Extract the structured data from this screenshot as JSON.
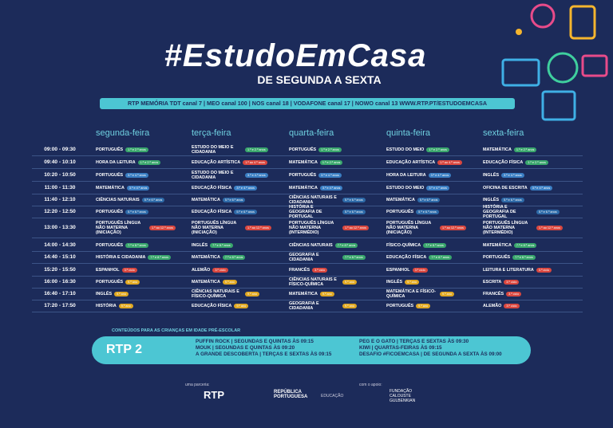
{
  "header": {
    "title": "#EstudoEmCasa",
    "subtitle": "DE SEGUNDA A SEXTA",
    "channels": "RTP MEMÓRIA   TDT canal 7 | MEO canal 100 | NOS canal 18 | VODAFONE canal 17 | NOWO canal 13     WWW.RTP.PT/ESTUDOEMCASA"
  },
  "schedule": {
    "days": [
      "segunda-feira",
      "terça-feira",
      "quarta-feira",
      "quinta-feira",
      "sexta-feira"
    ],
    "rows": [
      {
        "time": "09:00 - 09:30",
        "cells": [
          {
            "subject": "PORTUGUÊS",
            "grade": "1.º e 2.º anos",
            "color": "#3aa76d"
          },
          {
            "subject": "ESTUDO DO MEIO E CIDADANIA",
            "grade": "1.º e 2.º anos",
            "color": "#3aa76d"
          },
          {
            "subject": "PORTUGUÊS",
            "grade": "1.º e 2.º anos",
            "color": "#3aa76d"
          },
          {
            "subject": "ESTUDO DO MEIO",
            "grade": "1.º e 2.º anos",
            "color": "#3aa76d"
          },
          {
            "subject": "MATEMÁTICA",
            "grade": "1.º e 2.º anos",
            "color": "#3aa76d"
          }
        ]
      },
      {
        "time": "09:40 - 10:10",
        "cells": [
          {
            "subject": "HORA DA LEITURA",
            "grade": "1.º e 2.º anos",
            "color": "#3aa76d"
          },
          {
            "subject": "EDUCAÇÃO ARTÍSTICA",
            "grade": "1.º ao 4.º anos",
            "color": "#d9473f"
          },
          {
            "subject": "MATEMÁTICA",
            "grade": "1.º e 2.º anos",
            "color": "#3aa76d"
          },
          {
            "subject": "EDUCAÇÃO ARTÍSTICA",
            "grade": "1.º ao 4.º anos",
            "color": "#d9473f"
          },
          {
            "subject": "EDUCAÇÃO FÍSICA",
            "grade": "1.º e 2.º anos",
            "color": "#3aa76d"
          }
        ]
      },
      {
        "time": "10:20 - 10:50",
        "cells": [
          {
            "subject": "PORTUGUÊS",
            "grade": "3.º e 4.º anos",
            "color": "#3b7fc4"
          },
          {
            "subject": "ESTUDO DO MEIO E CIDADANIA",
            "grade": "3.º e 4.º anos",
            "color": "#3b7fc4"
          },
          {
            "subject": "PORTUGUÊS",
            "grade": "3.º e 4.º anos",
            "color": "#3b7fc4"
          },
          {
            "subject": "HORA DA LEITURA",
            "grade": "3.º e 4.º anos",
            "color": "#3b7fc4"
          },
          {
            "subject": "INGLÊS",
            "grade": "3.º e 4.º anos",
            "color": "#3b7fc4"
          }
        ]
      },
      {
        "time": "11:00 - 11:30",
        "cells": [
          {
            "subject": "MATEMÁTICA",
            "grade": "3.º e 4.º anos",
            "color": "#3b7fc4"
          },
          {
            "subject": "EDUCAÇÃO FÍSICA",
            "grade": "3.º e 4.º anos",
            "color": "#3b7fc4"
          },
          {
            "subject": "MATEMÁTICA",
            "grade": "3.º e 4.º anos",
            "color": "#3b7fc4"
          },
          {
            "subject": "ESTUDO DO MEIO",
            "grade": "3.º e 4.º anos",
            "color": "#3b7fc4"
          },
          {
            "subject": "OFICINA DE ESCRITA",
            "grade": "3.º e 4.º anos",
            "color": "#3b7fc4"
          }
        ]
      },
      {
        "time": "11:40 - 12:10",
        "cells": [
          {
            "subject": "CIÊNCIAS NATURAIS",
            "grade": "5.º e 6.º anos",
            "color": "#2e6aa8"
          },
          {
            "subject": "MATEMÁTICA",
            "grade": "5.º e 6.º anos",
            "color": "#2e6aa8"
          },
          {
            "subject": "CIÊNCIAS NATURAIS E CIDADANIA",
            "grade": "5.º e 6.º anos",
            "color": "#2e6aa8"
          },
          {
            "subject": "MATEMÁTICA",
            "grade": "5.º e 6.º anos",
            "color": "#2e6aa8"
          },
          {
            "subject": "INGLÊS",
            "grade": "5.º e 6.º anos",
            "color": "#2e6aa8"
          }
        ]
      },
      {
        "time": "12:20 - 12:50",
        "cells": [
          {
            "subject": "PORTUGUÊS",
            "grade": "5.º e 6.º anos",
            "color": "#2e6aa8"
          },
          {
            "subject": "EDUCAÇÃO FÍSICA",
            "grade": "5.º e 6.º anos",
            "color": "#2e6aa8"
          },
          {
            "subject": "HISTÓRIA E GEOGRAFIA DE PORTUGAL",
            "grade": "5.º e 6.º anos",
            "color": "#2e6aa8"
          },
          {
            "subject": "PORTUGUÊS",
            "grade": "5.º e 6.º anos",
            "color": "#2e6aa8"
          },
          {
            "subject": "HISTÓRIA E GEOGRAFIA DE PORTUGAL",
            "grade": "5.º e 6.º anos",
            "color": "#2e6aa8"
          }
        ]
      },
      {
        "time": "13:00 - 13:30",
        "cells": [
          {
            "subject": "PORTUGUÊS LÍNGUA NÃO MATERNA (INICIAÇÃO)",
            "grade": "1.º ao 12.º anos",
            "color": "#d9473f"
          },
          {
            "subject": "PORTUGUÊS LÍNGUA NÃO MATERNA (INICIAÇÃO)",
            "grade": "1.º ao 12.º anos",
            "color": "#d9473f"
          },
          {
            "subject": "PORTUGUÊS LÍNGUA NÃO MATERNA (INTERMÉDIO)",
            "grade": "1.º ao 12.º anos",
            "color": "#d9473f"
          },
          {
            "subject": "PORTUGUÊS LÍNGUA NÃO MATERNA (INICIAÇÃO)",
            "grade": "1.º ao 12.º anos",
            "color": "#d9473f"
          },
          {
            "subject": "PORTUGUÊS LÍNGUA NÃO MATERNA (INTERMÉDIO)",
            "grade": "1.º ao 12.º anos",
            "color": "#d9473f"
          }
        ]
      },
      {
        "time": "14:00 - 14:30",
        "cells": [
          {
            "subject": "PORTUGUÊS",
            "grade": "7.º e 8.º anos",
            "color": "#3aa76d"
          },
          {
            "subject": "INGLÊS",
            "grade": "7.º e 8.º anos",
            "color": "#3aa76d"
          },
          {
            "subject": "CIÊNCIAS NATURAIS",
            "grade": "7.º e 8.º anos",
            "color": "#3aa76d"
          },
          {
            "subject": "FÍSICO-QUÍMICA",
            "grade": "7.º e 8.º anos",
            "color": "#3aa76d"
          },
          {
            "subject": "MATEMÁTICA",
            "grade": "7.º e 8.º anos",
            "color": "#3aa76d"
          }
        ]
      },
      {
        "time": "14:40 - 15:10",
        "cells": [
          {
            "subject": "HISTÓRIA E CIDADANIA",
            "grade": "7.º e 8.º anos",
            "color": "#3aa76d"
          },
          {
            "subject": "MATEMÁTICA",
            "grade": "7.º e 8.º anos",
            "color": "#3aa76d"
          },
          {
            "subject": "GEOGRAFIA E CIDADANIA",
            "grade": "7.º e 8.º anos",
            "color": "#3aa76d"
          },
          {
            "subject": "EDUCAÇÃO FÍSICA",
            "grade": "7.º e 8.º anos",
            "color": "#3aa76d"
          },
          {
            "subject": "PORTUGUÊS",
            "grade": "7.º e 8.º anos",
            "color": "#3aa76d"
          }
        ]
      },
      {
        "time": "15:20 - 15:50",
        "cells": [
          {
            "subject": "ESPANHOL",
            "grade": "3.º ciclo",
            "color": "#d9473f"
          },
          {
            "subject": "ALEMÃO",
            "grade": "3.º ciclo",
            "color": "#d9473f"
          },
          {
            "subject": "FRANCÊS",
            "grade": "3.º ciclo",
            "color": "#d9473f"
          },
          {
            "subject": "ESPANHOL",
            "grade": "3.º ciclo",
            "color": "#d9473f"
          },
          {
            "subject": "LEITURA E LITERATURA",
            "grade": "3.º ciclo",
            "color": "#d9473f"
          }
        ]
      },
      {
        "time": "16:00 - 16:30",
        "cells": [
          {
            "subject": "PORTUGUÊS",
            "grade": "9.º ano",
            "color": "#e0a823"
          },
          {
            "subject": "MATEMÁTICA",
            "grade": "9.º ano",
            "color": "#e0a823"
          },
          {
            "subject": "CIÊNCIAS NATURAIS E FÍSICO-QUÍMICA",
            "grade": "9.º ano",
            "color": "#e0a823"
          },
          {
            "subject": "INGLÊS",
            "grade": "9.º ano",
            "color": "#e0a823"
          },
          {
            "subject": "ESCRITA",
            "grade": "3.º ciclo",
            "color": "#d9473f"
          }
        ]
      },
      {
        "time": "16:40 - 17:10",
        "cells": [
          {
            "subject": "INGLÊS",
            "grade": "9.º ano",
            "color": "#e0a823"
          },
          {
            "subject": "CIÊNCIAS NATURAIS E FÍSICO-QUÍMICA",
            "grade": "9.º ano",
            "color": "#e0a823"
          },
          {
            "subject": "MATEMÁTICA",
            "grade": "9.º ano",
            "color": "#e0a823"
          },
          {
            "subject": "MATEMÁTICA E FÍSICO-QUÍMICA",
            "grade": "9.º ano",
            "color": "#e0a823"
          },
          {
            "subject": "FRANCÊS",
            "grade": "3.º ciclo",
            "color": "#d9473f"
          }
        ]
      },
      {
        "time": "17:20 - 17:50",
        "cells": [
          {
            "subject": "HISTÓRIA",
            "grade": "9.º ano",
            "color": "#e0a823"
          },
          {
            "subject": "EDUCAÇÃO FÍSICA",
            "grade": "9.º ano",
            "color": "#e0a823"
          },
          {
            "subject": "GEOGRAFIA E CIDADANIA",
            "grade": "9.º ano",
            "color": "#e0a823"
          },
          {
            "subject": "PORTUGUÊS",
            "grade": "9.º ano",
            "color": "#e0a823"
          },
          {
            "subject": "ALEMÃO",
            "grade": "3.º ciclo",
            "color": "#d9473f"
          }
        ]
      }
    ]
  },
  "preschool": {
    "label": "CONTEÚDOS PARA AS CRIANÇAS EM IDADE PRÉ-ESCOLAR",
    "channel": "RTP 2",
    "programs_left": [
      "PUFFIN ROCK | SEGUNDAS E QUINTAS ÀS 09:15",
      "MOUK | SEGUNDAS E QUINTAS ÀS 09:20",
      "A GRANDE DESCOBERTA | TERÇAS E SEXTAS ÀS 09:15"
    ],
    "programs_right": [
      "PEG E O GATO | TERÇAS E SEXTAS ÀS 09:30",
      "KIWI | QUARTAS-FEIRAS ÀS 09:15",
      "DESAFIO #FICOEMCASA | DE SEGUNDA A SEXTA ÀS 09:00"
    ]
  },
  "footer": {
    "partner_label": "uma parceria:",
    "rtp": "RTP",
    "republica": "REPÚBLICA PORTUGUESA",
    "educacao": "EDUCAÇÃO",
    "support_label": "com o apoio:",
    "foundation": "FUNDAÇÃO CALOUSTE GULBENKIAN"
  }
}
